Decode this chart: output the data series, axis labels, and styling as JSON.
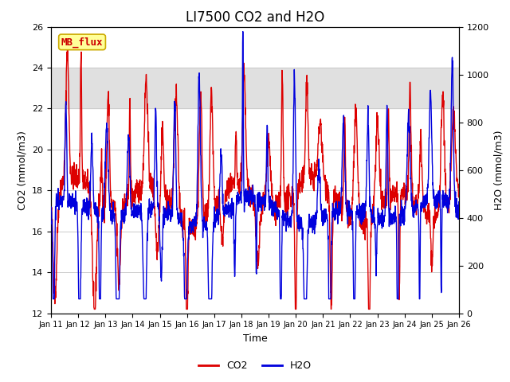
{
  "title": "LI7500 CO2 and H2O",
  "xlabel": "Time",
  "ylabel_left": "CO2 (mmol/m3)",
  "ylabel_right": "H2O (mmol/m3)",
  "xlim": [
    0,
    15
  ],
  "ylim_left": [
    12,
    26
  ],
  "ylim_right": [
    0,
    1200
  ],
  "xtick_labels": [
    "Jan 11",
    "Jan 12",
    "Jan 13",
    "Jan 14",
    "Jan 15",
    "Jan 16",
    "Jan 17",
    "Jan 18",
    "Jan 19",
    "Jan 20",
    "Jan 21",
    "Jan 22",
    "Jan 23",
    "Jan 24",
    "Jan 25",
    "Jan 26"
  ],
  "ytick_left": [
    12,
    14,
    16,
    18,
    20,
    22,
    24,
    26
  ],
  "ytick_right": [
    0,
    200,
    400,
    600,
    800,
    1000,
    1200
  ],
  "co2_color": "#dd0000",
  "h2o_color": "#0000dd",
  "grid_color": "#cccccc",
  "legend_label_co2": "CO2",
  "legend_label_h2o": "H2O",
  "watermark_text": "MB_flux",
  "watermark_bg": "#ffff99",
  "watermark_border": "#ccaa00",
  "watermark_fg": "#cc0000",
  "title_fontsize": 12,
  "axis_fontsize": 9,
  "tick_fontsize": 8,
  "legend_fontsize": 9,
  "linewidth": 1.0,
  "gray_band_ymin": 22.0,
  "gray_band_ymax": 24.0,
  "gray_band_color": "#e0e0e0"
}
